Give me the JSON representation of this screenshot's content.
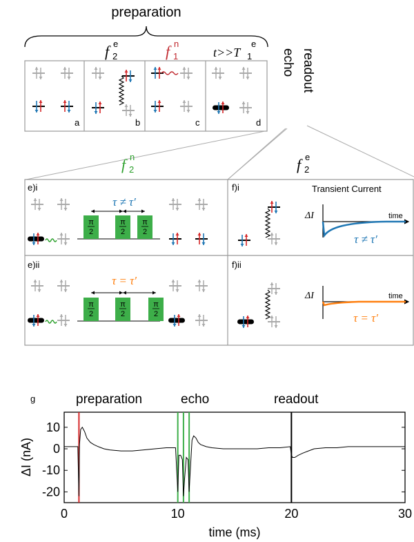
{
  "top": {
    "title": "preparation",
    "cols": [
      {
        "head": "",
        "sup": "",
        "sub": "",
        "letter": "a",
        "head_color": "#000000"
      },
      {
        "head": "f",
        "sup": "e",
        "sub": "2",
        "letter": "b",
        "head_color": "#000000"
      },
      {
        "head": "f",
        "sup": "n",
        "sub": "1",
        "letter": "c",
        "head_color": "#c0272d"
      },
      {
        "head": "t>>T",
        "sup": "e",
        "sub": "1",
        "letter": "d",
        "head_color": "#000000"
      }
    ],
    "echo": "echo",
    "readout": "readout"
  },
  "middle": {
    "f2n": {
      "base": "f",
      "sup": "n",
      "sub": "2",
      "color": "#2ca02c"
    },
    "f2e": {
      "base": "f",
      "sup": "e",
      "sub": "2",
      "color": "#000000"
    },
    "e_i": {
      "label": "e)i",
      "tau": "τ ≠ τ′",
      "tau_color": "#1f77b4"
    },
    "e_ii": {
      "label": "e)ii",
      "tau": "τ = τ′",
      "tau_color": "#ff7f0e"
    },
    "f_i": {
      "label": "f)i",
      "title": "Transient Current",
      "dI": "ΔI",
      "time": "time",
      "tau": "τ ≠ τ′",
      "color": "#1f77b4"
    },
    "f_ii": {
      "label": "f)ii",
      "dI": "ΔI",
      "time": "time",
      "tau": "τ = τ′",
      "color": "#ff7f0e"
    },
    "pulse_num": "π",
    "pulse_den": "2",
    "pulse_color": "#3dae49"
  },
  "bottom": {
    "panel": "g",
    "phases": [
      "preparation",
      "echo",
      "readout"
    ],
    "ylabel": "ΔI (nA)",
    "xlabel": "time (ms)",
    "chart_data": {
      "type": "line",
      "x_ticks": [
        "0",
        "10",
        "20",
        "30"
      ],
      "y_ticks": [
        "10",
        "0",
        "-10",
        "-20"
      ],
      "xlim": [
        0,
        30
      ],
      "ylim": [
        -25,
        17
      ],
      "xlabel": "time (ms)",
      "ylabel": "ΔI (nA)",
      "markers": [
        {
          "t": 1.3,
          "color": "#d62728"
        },
        {
          "t": 10.0,
          "color": "#3dae49"
        },
        {
          "t": 10.5,
          "color": "#3dae49"
        },
        {
          "t": 11.0,
          "color": "#3dae49"
        },
        {
          "t": 20.0,
          "color": "#000000"
        }
      ],
      "series": [
        {
          "x": [
            0,
            1.0,
            1.2,
            1.3,
            1.35,
            1.45,
            1.6,
            1.8,
            2.0,
            2.3,
            2.6,
            3.0,
            3.5,
            4.0,
            5.0,
            6.0,
            7.0,
            8.0,
            9.0,
            9.8,
            10.0,
            10.1,
            10.25,
            10.4,
            10.5,
            10.6,
            10.75,
            10.9,
            11.0,
            11.1,
            11.25,
            11.4,
            11.6,
            11.8,
            12.0,
            12.5,
            13.0,
            14.0,
            15.0,
            16.0,
            17.0,
            18.0,
            19.0,
            19.9,
            20.0,
            20.1,
            20.3,
            20.6,
            21.0,
            21.5,
            22.0,
            23.0,
            24.0,
            25.0,
            26.0,
            27.0,
            28.0,
            29.0,
            30.0
          ],
          "y": [
            1,
            1,
            1,
            -22,
            2,
            9,
            10,
            8,
            5,
            3,
            2,
            1,
            0,
            -0.5,
            -1,
            -1,
            -0.5,
            0,
            0.5,
            0.5,
            -20,
            -3,
            -3,
            -5,
            -22,
            -14,
            -4,
            -5,
            -20,
            -10,
            4,
            6,
            5,
            3,
            2,
            1,
            0.5,
            0,
            0,
            0,
            0,
            0.5,
            0.5,
            1,
            -3,
            -4,
            -4,
            -3,
            -2,
            -1,
            0,
            0.5,
            0.5,
            1,
            1,
            1,
            1,
            1,
            1
          ]
        }
      ]
    }
  }
}
